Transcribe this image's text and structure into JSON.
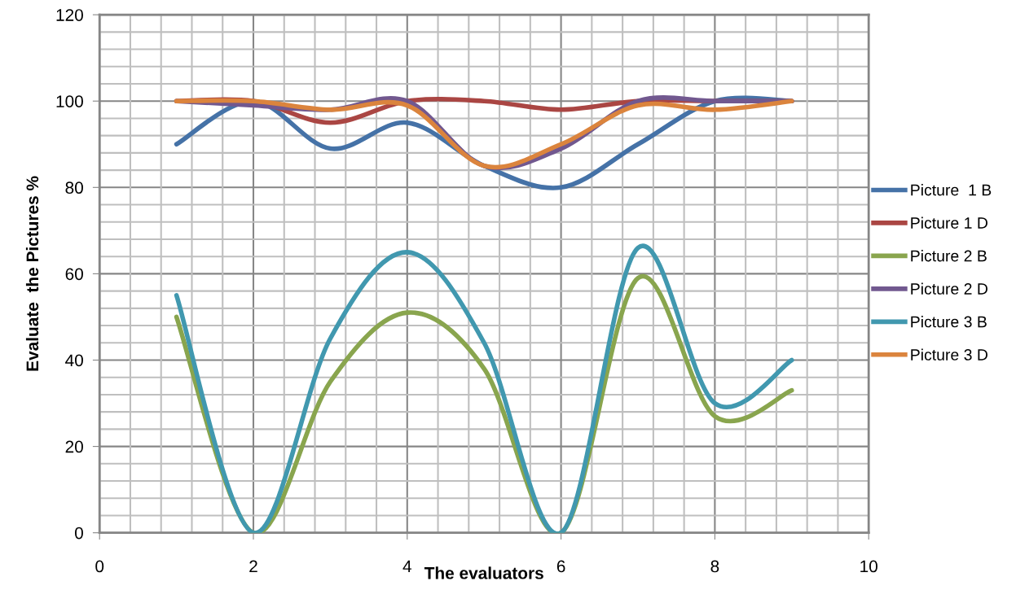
{
  "chart_data": {
    "type": "line",
    "xlabel": "The evaluators",
    "ylabel": "Evaluate  the Pictures %",
    "x": [
      1,
      2,
      3,
      4,
      5,
      6,
      7,
      8,
      9
    ],
    "xlim": [
      0,
      10
    ],
    "xticks": [
      0,
      2,
      4,
      6,
      8,
      10
    ],
    "ylim": [
      0,
      120
    ],
    "yticks": [
      0,
      20,
      40,
      60,
      80,
      100,
      120
    ],
    "grid": true,
    "legend": "right",
    "marker": "none",
    "line_style": "solid",
    "series": [
      {
        "name": "Picture  1 B",
        "color": "#4572a7",
        "values": [
          90,
          100,
          89,
          95,
          85,
          80,
          90,
          100,
          100
        ]
      },
      {
        "name": "Picture 1 D",
        "color": "#aa4643",
        "values": [
          100,
          100,
          95,
          100,
          100,
          98,
          100,
          100,
          100
        ]
      },
      {
        "name": "Picture 2 B",
        "color": "#89a54e",
        "values": [
          50,
          0,
          35,
          51,
          38,
          0,
          59,
          27,
          33
        ]
      },
      {
        "name": "Picture 2 D",
        "color": "#71588f",
        "values": [
          100,
          99,
          98,
          100,
          85,
          89,
          100,
          100,
          100
        ]
      },
      {
        "name": "Picture 3 B",
        "color": "#4198af",
        "values": [
          55,
          0,
          45,
          65,
          44,
          0,
          66,
          30,
          40
        ]
      },
      {
        "name": "Picture 3 D",
        "color": "#db843d",
        "values": [
          100,
          100,
          98,
          99,
          85,
          90,
          99,
          98,
          100
        ]
      }
    ]
  }
}
